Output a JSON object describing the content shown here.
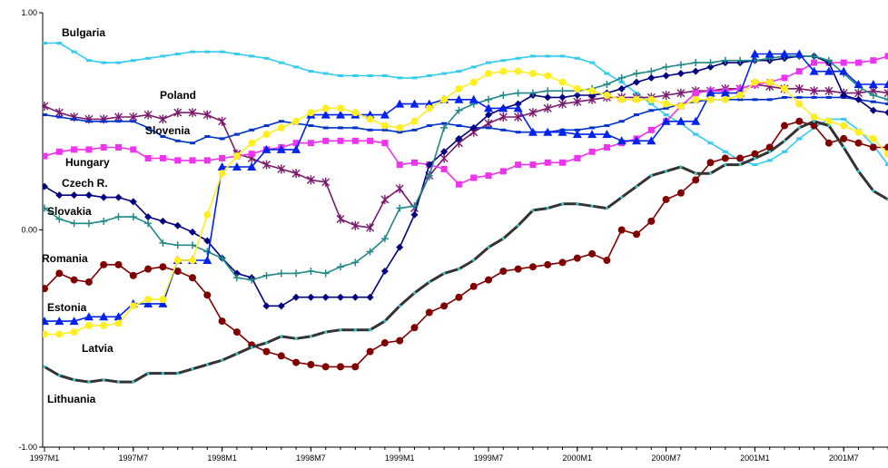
{
  "chart_data": {
    "type": "line",
    "title": "",
    "xlabel": "",
    "ylabel": "",
    "ylim": [
      -1.0,
      1.0
    ],
    "yticks": [
      1.0,
      0.0,
      -1.0
    ],
    "ytick_labels": [
      "1.00",
      "0.00",
      "-1.00"
    ],
    "xticks": [
      0,
      6,
      12,
      18,
      24,
      30,
      36,
      42,
      48,
      54
    ],
    "xtick_labels": [
      "1997M1",
      "1997M7",
      "1998M1",
      "1998M7",
      "1999M1",
      "1999M7",
      "2000M1",
      "2000M7",
      "2001M1",
      "2001M7"
    ],
    "x_start": "1997M1",
    "grid": false,
    "legend": "labels beside lines",
    "series": [
      {
        "name": "Bulgaria",
        "color": "#33ccee",
        "marker": "dash",
        "values": [
          0.86,
          0.86,
          0.82,
          0.78,
          0.77,
          0.77,
          0.78,
          0.79,
          0.8,
          0.81,
          0.82,
          0.82,
          0.82,
          0.81,
          0.8,
          0.79,
          0.77,
          0.75,
          0.73,
          0.72,
          0.71,
          0.71,
          0.71,
          0.71,
          0.7,
          0.7,
          0.71,
          0.72,
          0.73,
          0.75,
          0.77,
          0.78,
          0.79,
          0.8,
          0.8,
          0.8,
          0.79,
          0.77,
          0.72,
          0.68,
          0.63,
          0.58,
          0.53,
          0.49,
          0.44,
          0.4,
          0.36,
          0.32,
          0.3,
          0.32,
          0.36,
          0.42,
          0.47,
          0.51,
          0.51,
          0.46,
          0.39,
          0.3,
          0.2,
          0.12
        ]
      },
      {
        "name": "Poland",
        "color": "#7a1a6e",
        "marker": "star",
        "values": [
          0.57,
          0.54,
          0.52,
          0.51,
          0.51,
          0.52,
          0.52,
          0.53,
          0.51,
          0.54,
          0.54,
          0.53,
          0.5,
          0.35,
          0.33,
          0.3,
          0.28,
          0.26,
          0.23,
          0.22,
          0.05,
          0.02,
          0.01,
          0.14,
          0.19,
          0.1,
          0.25,
          0.33,
          0.4,
          0.45,
          0.49,
          0.52,
          0.52,
          0.54,
          0.56,
          0.58,
          0.59,
          0.6,
          0.61,
          0.61,
          0.61,
          0.61,
          0.62,
          0.63,
          0.64,
          0.64,
          0.65,
          0.65,
          0.67,
          0.66,
          0.65,
          0.65,
          0.64,
          0.64,
          0.63,
          0.63,
          0.64,
          0.63,
          0.63,
          0.68
        ]
      },
      {
        "name": "Slovenia",
        "color": "#0033cc",
        "marker": "dash",
        "values": [
          0.53,
          0.52,
          0.51,
          0.5,
          0.5,
          0.5,
          0.5,
          0.47,
          0.43,
          0.41,
          0.4,
          0.43,
          0.42,
          0.44,
          0.46,
          0.48,
          0.5,
          0.49,
          0.48,
          0.47,
          0.47,
          0.47,
          0.46,
          0.46,
          0.45,
          0.46,
          0.48,
          0.49,
          0.48,
          0.47,
          0.47,
          0.46,
          0.45,
          0.45,
          0.45,
          0.46,
          0.46,
          0.47,
          0.48,
          0.5,
          0.53,
          0.55,
          0.56,
          0.58,
          0.59,
          0.6,
          0.6,
          0.6,
          0.6,
          0.6,
          0.61,
          0.61,
          0.61,
          0.61,
          0.61,
          0.6,
          0.59,
          0.58,
          0.57,
          0.57
        ]
      },
      {
        "name": "Hungary",
        "color": "#ee33ee",
        "marker": "square",
        "values": [
          0.34,
          0.36,
          0.37,
          0.37,
          0.38,
          0.38,
          0.37,
          0.33,
          0.33,
          0.32,
          0.32,
          0.32,
          0.33,
          0.34,
          0.35,
          0.37,
          0.38,
          0.4,
          0.4,
          0.41,
          0.41,
          0.41,
          0.41,
          0.4,
          0.3,
          0.31,
          0.3,
          0.28,
          0.21,
          0.24,
          0.25,
          0.27,
          0.3,
          0.3,
          0.31,
          0.31,
          0.33,
          0.36,
          0.38,
          0.4,
          0.42,
          0.46,
          0.5,
          0.57,
          0.63,
          0.64,
          0.64,
          0.65,
          0.67,
          0.68,
          0.7,
          0.73,
          0.77,
          0.77,
          0.77,
          0.77,
          0.78,
          0.8,
          0.8,
          0.82
        ]
      },
      {
        "name": "Czech R.",
        "color": "#000080",
        "marker": "diamond",
        "values": [
          0.2,
          0.16,
          0.16,
          0.16,
          0.15,
          0.15,
          0.13,
          0.06,
          0.04,
          0.02,
          -0.01,
          -0.05,
          -0.13,
          -0.2,
          -0.22,
          -0.35,
          -0.35,
          -0.31,
          -0.31,
          -0.31,
          -0.31,
          -0.31,
          -0.31,
          -0.19,
          -0.08,
          0.07,
          0.3,
          0.36,
          0.42,
          0.47,
          0.53,
          0.56,
          0.58,
          0.62,
          0.61,
          0.61,
          0.62,
          0.62,
          0.63,
          0.65,
          0.68,
          0.7,
          0.71,
          0.72,
          0.73,
          0.75,
          0.77,
          0.77,
          0.78,
          0.78,
          0.79,
          0.8,
          0.8,
          0.77,
          0.62,
          0.6,
          0.55,
          0.54,
          0.54,
          0.54
        ]
      },
      {
        "name": "Slovakia",
        "color": "#228888",
        "marker": "plus",
        "values": [
          0.1,
          0.05,
          0.03,
          0.03,
          0.04,
          0.06,
          0.06,
          0.03,
          -0.06,
          -0.07,
          -0.07,
          -0.1,
          -0.13,
          -0.22,
          -0.23,
          -0.21,
          -0.2,
          -0.2,
          -0.19,
          -0.2,
          -0.17,
          -0.15,
          -0.1,
          -0.04,
          0.1,
          0.11,
          0.25,
          0.47,
          0.55,
          0.58,
          0.6,
          0.62,
          0.63,
          0.63,
          0.64,
          0.64,
          0.64,
          0.65,
          0.67,
          0.7,
          0.72,
          0.73,
          0.75,
          0.76,
          0.77,
          0.77,
          0.78,
          0.78,
          0.78,
          0.79,
          0.8,
          0.8,
          0.8,
          0.78,
          0.72,
          0.66,
          0.62,
          0.6,
          0.58,
          0.57
        ]
      },
      {
        "name": "Romania",
        "color": "#800000",
        "marker": "circle",
        "values": [
          -0.27,
          -0.2,
          -0.23,
          -0.24,
          -0.16,
          -0.16,
          -0.21,
          -0.18,
          -0.17,
          -0.19,
          -0.22,
          -0.3,
          -0.42,
          -0.47,
          -0.53,
          -0.56,
          -0.58,
          -0.61,
          -0.62,
          -0.63,
          -0.63,
          -0.63,
          -0.56,
          -0.52,
          -0.51,
          -0.45,
          -0.38,
          -0.35,
          -0.31,
          -0.26,
          -0.23,
          -0.19,
          -0.18,
          -0.17,
          -0.16,
          -0.15,
          -0.13,
          -0.11,
          -0.14,
          0.0,
          -0.02,
          0.04,
          0.14,
          0.17,
          0.23,
          0.31,
          0.33,
          0.33,
          0.35,
          0.38,
          0.48,
          0.5,
          0.48,
          0.4,
          0.42,
          0.4,
          0.38,
          0.38,
          0.37,
          0.38
        ]
      },
      {
        "name": "Estonia",
        "color": "#0022ee",
        "marker": "triangle",
        "values": [
          -0.42,
          -0.42,
          -0.42,
          -0.4,
          -0.4,
          -0.4,
          -0.34,
          -0.34,
          -0.34,
          -0.14,
          -0.14,
          -0.14,
          0.29,
          0.29,
          0.29,
          0.37,
          0.37,
          0.37,
          0.53,
          0.53,
          0.53,
          0.53,
          0.53,
          0.53,
          0.58,
          0.58,
          0.58,
          0.6,
          0.6,
          0.6,
          0.56,
          0.56,
          0.56,
          0.45,
          0.45,
          0.45,
          0.44,
          0.44,
          0.44,
          0.41,
          0.41,
          0.41,
          0.5,
          0.5,
          0.5,
          0.63,
          0.63,
          0.63,
          0.81,
          0.81,
          0.81,
          0.81,
          0.73,
          0.73,
          0.73,
          0.67,
          0.67,
          0.67,
          0.68,
          0.67
        ]
      },
      {
        "name": "Latvia",
        "color": "#ffee22",
        "marker": "circle",
        "values": [
          -0.48,
          -0.48,
          -0.47,
          -0.44,
          -0.44,
          -0.43,
          -0.35,
          -0.32,
          -0.32,
          -0.14,
          -0.14,
          0.07,
          0.26,
          0.34,
          0.4,
          0.44,
          0.47,
          0.5,
          0.54,
          0.56,
          0.56,
          0.54,
          0.51,
          0.48,
          0.47,
          0.5,
          0.56,
          0.6,
          0.65,
          0.68,
          0.72,
          0.73,
          0.73,
          0.72,
          0.71,
          0.68,
          0.65,
          0.64,
          0.62,
          0.6,
          0.6,
          0.6,
          0.58,
          0.57,
          0.6,
          0.6,
          0.6,
          0.62,
          0.68,
          0.68,
          0.65,
          0.58,
          0.52,
          0.5,
          0.48,
          0.45,
          0.42,
          0.35,
          0.31,
          0.28
        ]
      },
      {
        "name": "Lithuania",
        "color": "#333333",
        "marker": "dot",
        "values": [
          -0.63,
          -0.67,
          -0.69,
          -0.7,
          -0.69,
          -0.7,
          -0.7,
          -0.66,
          -0.66,
          -0.66,
          -0.64,
          -0.62,
          -0.6,
          -0.57,
          -0.54,
          -0.52,
          -0.49,
          -0.5,
          -0.49,
          -0.47,
          -0.46,
          -0.46,
          -0.46,
          -0.42,
          -0.35,
          -0.29,
          -0.24,
          -0.2,
          -0.18,
          -0.14,
          -0.08,
          -0.04,
          0.02,
          0.09,
          0.1,
          0.12,
          0.12,
          0.11,
          0.1,
          0.15,
          0.2,
          0.25,
          0.27,
          0.29,
          0.26,
          0.26,
          0.3,
          0.3,
          0.33,
          0.36,
          0.41,
          0.47,
          0.5,
          0.48,
          0.38,
          0.27,
          0.18,
          0.14,
          0.1,
          0.08
        ]
      }
    ]
  }
}
